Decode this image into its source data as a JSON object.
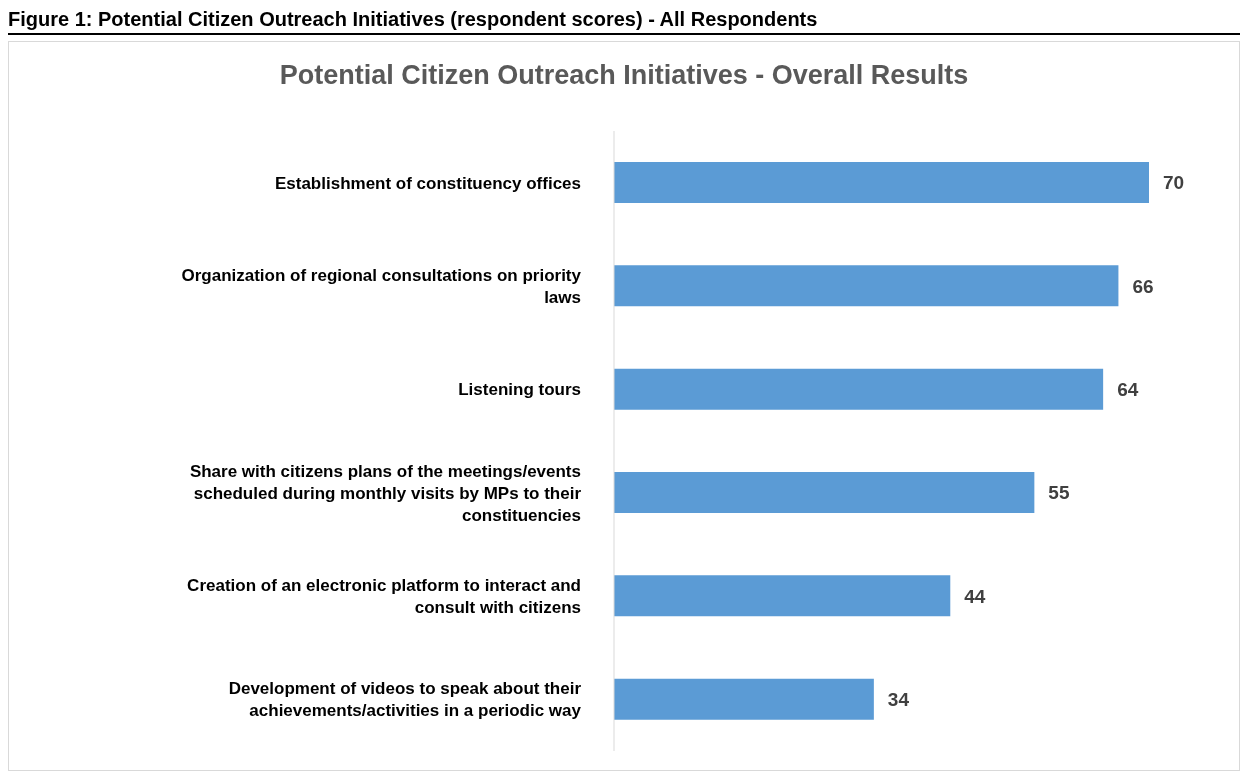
{
  "chart_data": {
    "type": "bar",
    "orientation": "horizontal",
    "title": "Potential Citizen Outreach Initiatives - Overall Results",
    "annotations": [
      "Figure 1: Potential Citizen Outreach Initiatives (respondent scores) - All Respondents"
    ],
    "categories": [
      "Establishment of constituency offices",
      "Organization of regional consultations on priority laws",
      "Listening tours",
      "Share with citizens plans of the meetings/events scheduled during monthly visits by MPs to their constituencies",
      "Creation of an electronic platform to interact and consult with citizens",
      "Development of videos to speak about their achievements/activities in a periodic way"
    ],
    "values": [
      70,
      66,
      64,
      55,
      44,
      34
    ],
    "color": "#5b9bd5",
    "data_labels": true,
    "grid": false,
    "legend": false
  }
}
